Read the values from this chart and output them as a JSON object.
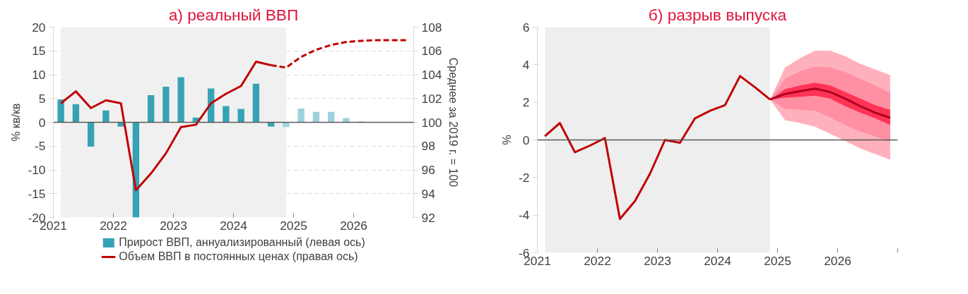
{
  "chart_data": [
    {
      "type": "bar",
      "title": "а) реальный ВВП",
      "ylabel": "% кв/кв",
      "y2label": "Среднее за 2019 г. = 100",
      "xlim": [
        2021,
        2027
      ],
      "xticks": [
        {
          "value": 2021,
          "label": "2021"
        },
        {
          "value": 2022,
          "label": "2022"
        },
        {
          "value": 2023,
          "label": "2023"
        },
        {
          "value": 2024,
          "label": "2024"
        },
        {
          "value": 2025,
          "label": "2025"
        },
        {
          "value": 2026,
          "label": "2026"
        },
        {
          "value": 2027,
          "label": null
        }
      ],
      "ylim": [
        -20,
        20
      ],
      "yticks": [
        -20,
        -15,
        -10,
        -5,
        0,
        5,
        10,
        15,
        20
      ],
      "y2lim": [
        92,
        108
      ],
      "y2ticks": [
        92,
        94,
        96,
        98,
        100,
        102,
        104,
        106,
        108
      ],
      "grid": "y",
      "legend": "bottom",
      "bands": [
        {
          "axis": "x",
          "from": 2021.125,
          "to": 2024.875,
          "color": "#f0f0f0"
        }
      ],
      "ref_lines": [
        {
          "axis": "y",
          "value": 0,
          "color": "#595959"
        }
      ],
      "series": [
        {
          "type": "bar",
          "name": "Прирост ВВП, аннуализированный (левая ось)",
          "color": "#35a3b5",
          "x": [
            2021.125,
            2021.375,
            2021.625,
            2021.875,
            2022.125,
            2022.375,
            2022.625,
            2022.875,
            2023.125,
            2023.375,
            2023.625,
            2023.875,
            2024.125,
            2024.375,
            2024.625,
            2024.875,
            2025.125,
            2025.375,
            2025.625,
            2025.875,
            2026.125
          ],
          "values": [
            4.8,
            3.8,
            -5.1,
            2.5,
            -0.9,
            -20,
            5.7,
            7.5,
            9.5,
            1.0,
            7.1,
            3.4,
            2.8,
            8.1,
            -0.9,
            -1.0,
            2.9,
            2.2,
            2.2,
            0.9,
            0.2
          ],
          "colors": [
            "#35a3b5",
            "#35a3b5",
            "#35a3b5",
            "#35a3b5",
            "#35a3b5",
            "#35a3b5",
            "#35a3b5",
            "#35a3b5",
            "#35a3b5",
            "#35a3b5",
            "#35a3b5",
            "#35a3b5",
            "#35a3b5",
            "#35a3b5",
            "#35a3b5",
            "#9dd2dc",
            "#9dd2dc",
            "#9dd2dc",
            "#9dd2dc",
            "#9dd2dc",
            "#9dd2dc"
          ]
        },
        {
          "type": "line",
          "axis": "y2",
          "name": "Объем ВВП в постоянных ценах (правая ось)",
          "color": "#c00000",
          "line_style": "solid",
          "x": [
            2021.125,
            2021.375,
            2021.625,
            2021.875,
            2022.125,
            2022.375,
            2022.625,
            2022.875,
            2023.125,
            2023.375,
            2023.625,
            2023.875,
            2024.125,
            2024.375,
            2024.625
          ],
          "values": [
            101.6,
            102.6,
            101.2,
            101.85,
            101.6,
            94.3,
            95.7,
            97.4,
            99.6,
            99.8,
            101.6,
            102.4,
            103.05,
            105.1,
            104.8
          ]
        },
        {
          "type": "line",
          "axis": "y2",
          "color": "#c00000",
          "line_style": "dashed",
          "x": [
            2024.625,
            2024.875,
            2025.125,
            2025.375,
            2025.625,
            2025.875,
            2026.125,
            2026.375,
            2026.625,
            2026.875
          ],
          "values": [
            104.8,
            104.6,
            105.5,
            106.1,
            106.5,
            106.75,
            106.85,
            106.9,
            106.9,
            106.9
          ]
        }
      ]
    },
    {
      "type": "line",
      "title": "б) разрыв выпуска",
      "ylabel": "%",
      "xlim": [
        2021,
        2027
      ],
      "xticks": [
        {
          "value": 2021,
          "label": "2021"
        },
        {
          "value": 2022,
          "label": "2022"
        },
        {
          "value": 2023,
          "label": "2023"
        },
        {
          "value": 2024,
          "label": "2024"
        },
        {
          "value": 2025,
          "label": "2025"
        },
        {
          "value": 2026,
          "label": "2026"
        },
        {
          "value": 2027,
          "label": null
        }
      ],
      "ylim": [
        -6,
        6
      ],
      "yticks": [
        -6,
        -4,
        -2,
        0,
        2,
        4,
        6
      ],
      "grid": false,
      "bands": [
        {
          "axis": "x",
          "from": 2021.125,
          "to": 2024.875,
          "color": "#eeeeee"
        }
      ],
      "ref_lines": [
        {
          "axis": "y",
          "value": 0,
          "color": "#595959"
        }
      ],
      "series": [
        {
          "color": "#ffb0bd",
          "x": [
            2024.875,
            2025.125,
            2025.375,
            2025.625,
            2025.875,
            2026.125,
            2026.375,
            2026.625,
            2026.875
          ],
          "values": [
            null,
            null,
            null,
            null,
            null,
            null,
            null,
            null,
            null
          ],
          "lower": [
            2.15,
            1.05,
            0.9,
            0.7,
            0.33,
            -0.05,
            -0.45,
            -0.75,
            -1.05
          ],
          "upper": [
            2.15,
            3.85,
            4.35,
            4.75,
            4.75,
            4.45,
            4.05,
            3.75,
            3.45
          ]
        },
        {
          "color": "#ff8fa3",
          "x": [
            2024.875,
            2025.125,
            2025.375,
            2025.625,
            2025.875,
            2026.125,
            2026.375,
            2026.625,
            2026.875
          ],
          "values": [
            null,
            null,
            null,
            null,
            null,
            null,
            null,
            null,
            null
          ],
          "lower": [
            2.15,
            1.65,
            1.6,
            1.55,
            1.2,
            0.8,
            0.45,
            0.2,
            -0.1
          ],
          "upper": [
            2.15,
            3.25,
            3.65,
            3.9,
            3.85,
            3.6,
            3.25,
            2.9,
            2.5
          ]
        },
        {
          "color": "#ff3355",
          "x": [
            2024.875,
            2025.125,
            2025.375,
            2025.625,
            2025.875,
            2026.125,
            2026.375,
            2026.625,
            2026.875
          ],
          "values": [
            null,
            null,
            null,
            null,
            null,
            null,
            null,
            null,
            null
          ],
          "lower": [
            2.15,
            2.25,
            2.3,
            2.35,
            2.2,
            1.8,
            1.45,
            1.15,
            0.8
          ],
          "upper": [
            2.15,
            2.7,
            2.9,
            3.05,
            2.9,
            2.55,
            2.2,
            1.85,
            1.6
          ]
        },
        {
          "color": "#b00020",
          "x": [
            2024.875,
            2025.125,
            2025.375,
            2025.625,
            2025.875,
            2026.125,
            2026.375,
            2026.625,
            2026.875
          ],
          "values": [
            2.15,
            2.45,
            2.6,
            2.73,
            2.55,
            2.2,
            1.8,
            1.45,
            1.18
          ]
        },
        {
          "color": "#c00000",
          "x": [
            2021.125,
            2021.375,
            2021.625,
            2021.875,
            2022.125,
            2022.375,
            2022.625,
            2022.875,
            2023.125,
            2023.375,
            2023.625,
            2023.875,
            2024.125,
            2024.375,
            2024.625,
            2024.875
          ],
          "values": [
            0.2,
            0.9,
            -0.65,
            -0.3,
            0.1,
            -4.2,
            -3.25,
            -1.8,
            0.0,
            -0.15,
            1.15,
            1.55,
            1.85,
            3.4,
            2.8,
            2.15
          ]
        }
      ]
    }
  ]
}
